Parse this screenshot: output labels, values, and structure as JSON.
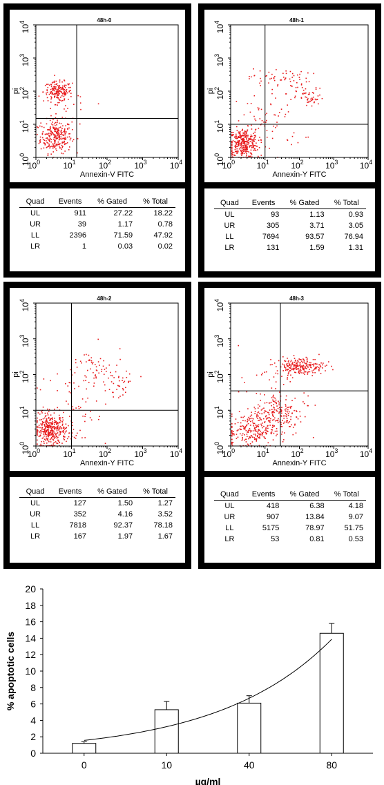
{
  "panels": [
    {
      "id": "48h-0",
      "title": "48h-0",
      "xlabel": "Annexin-V FITC",
      "ylabel": "pi",
      "quadrant_x": 14,
      "quadrant_y": 15,
      "table": {
        "headers": [
          "Quad",
          "Events",
          "% Gated",
          "% Total"
        ],
        "rows": [
          [
            "UL",
            "911",
            "27.22",
            "18.22"
          ],
          [
            "UR",
            "39",
            "1.17",
            "0.78"
          ],
          [
            "LL",
            "2396",
            "71.59",
            "47.92"
          ],
          [
            "LR",
            "1",
            "0.03",
            "0.02"
          ]
        ]
      }
    },
    {
      "id": "48h-1",
      "title": "48h-1",
      "xlabel": "Annexin-Y FITC",
      "ylabel": "pi",
      "quadrant_x": 10,
      "quadrant_y": 10,
      "table": {
        "headers": [
          "Quad",
          "Events",
          "% Gated",
          "% Total"
        ],
        "rows": [
          [
            "UL",
            "93",
            "1.13",
            "0.93"
          ],
          [
            "UR",
            "305",
            "3.71",
            "3.05"
          ],
          [
            "LL",
            "7694",
            "93.57",
            "76.94"
          ],
          [
            "LR",
            "131",
            "1.59",
            "1.31"
          ]
        ]
      }
    },
    {
      "id": "48h-2",
      "title": "48h-2",
      "xlabel": "Annexin-Y FITC",
      "ylabel": "pi",
      "quadrant_x": 10,
      "quadrant_y": 10,
      "table": {
        "headers": [
          "Quad",
          "Events",
          "% Gated",
          "% Total"
        ],
        "rows": [
          [
            "UL",
            "127",
            "1.50",
            "1.27"
          ],
          [
            "UR",
            "352",
            "4.16",
            "3.52"
          ],
          [
            "LL",
            "7818",
            "92.37",
            "78.18"
          ],
          [
            "LR",
            "167",
            "1.97",
            "1.67"
          ]
        ]
      }
    },
    {
      "id": "48h-3",
      "title": "48h-3",
      "xlabel": "Annexin-Y FITC",
      "ylabel": "pi",
      "quadrant_x": 28,
      "quadrant_y": 35,
      "table": {
        "headers": [
          "Quad",
          "Events",
          "% Gated",
          "% Total"
        ],
        "rows": [
          [
            "UL",
            "418",
            "6.38",
            "4.18"
          ],
          [
            "UR",
            "907",
            "13.84",
            "9.07"
          ],
          [
            "LL",
            "5175",
            "78.97",
            "51.75"
          ],
          [
            "LR",
            "53",
            "0.81",
            "0.53"
          ]
        ]
      }
    }
  ],
  "flow_axis": {
    "scale": "log",
    "range": [
      1,
      10000
    ],
    "ticks": [
      1,
      10,
      100,
      1000,
      10000
    ]
  },
  "colors": {
    "dots": "#e8191b",
    "panel_frame": "#000000"
  },
  "chart_data": {
    "type": "bar",
    "categories": [
      "0",
      "10",
      "40",
      "80"
    ],
    "values": [
      1.2,
      5.3,
      6.1,
      14.6
    ],
    "errors": [
      0.2,
      1.0,
      0.9,
      1.2
    ],
    "trendline": "exponential",
    "xlabel": "µg/ml",
    "ylabel": "% apoptotic cells",
    "ylim": [
      0,
      20
    ],
    "yticks": [
      0,
      2,
      4,
      6,
      8,
      10,
      12,
      14,
      16,
      18,
      20
    ],
    "grid": false
  }
}
